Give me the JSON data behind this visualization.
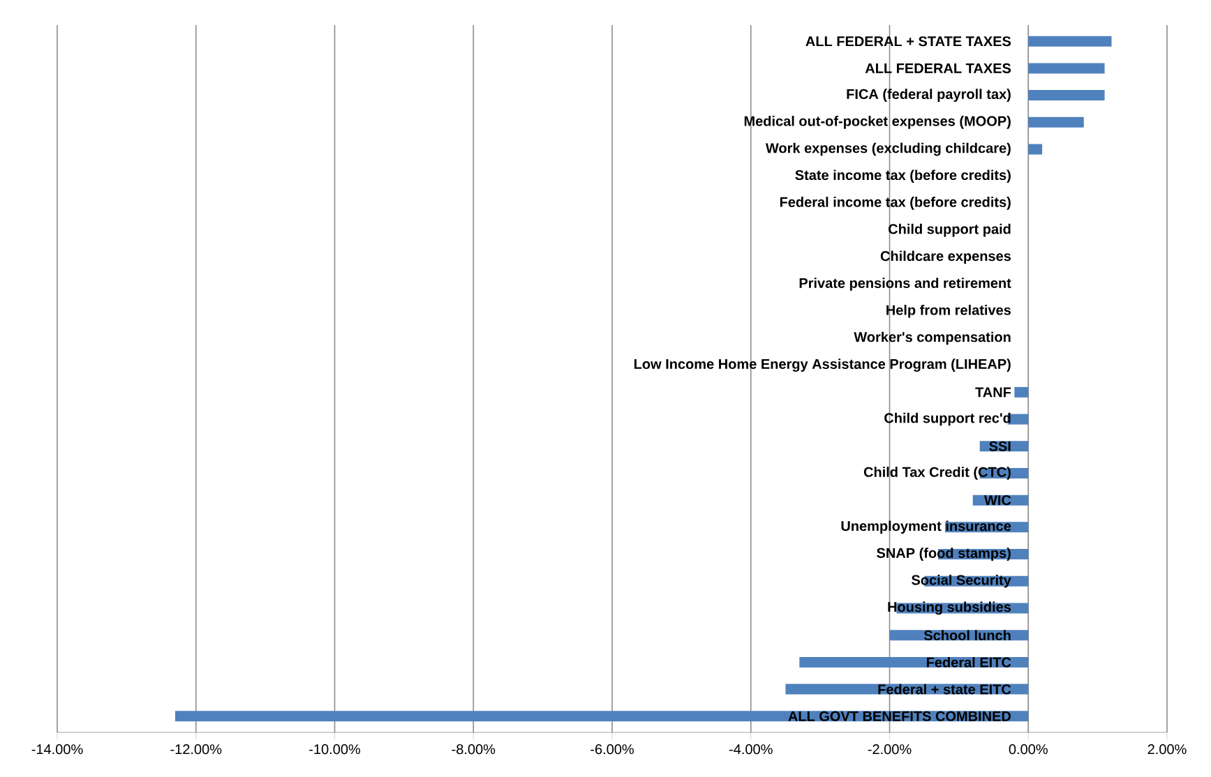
{
  "chart_data": {
    "type": "bar",
    "orientation": "horizontal",
    "color": "#4f81bd",
    "grid": "x",
    "categories": [
      "ALL FEDERAL + STATE TAXES",
      "ALL FEDERAL TAXES",
      "FICA (federal payroll tax)",
      "Medical out-of-pocket expenses (MOOP)",
      "Work expenses (excluding childcare)",
      "State income tax (before credits)",
      "Federal income tax (before credits)",
      "Child support paid",
      "Childcare expenses",
      "Private pensions and retirement",
      "Help from relatives",
      "Worker's compensation",
      "Low Income Home Energy Assistance Program (LIHEAP)",
      "TANF",
      "Child support rec'd",
      "SSI",
      "Child Tax Credit (CTC)",
      "WIC",
      "Unemployment insurance",
      "SNAP (food stamps)",
      "Social Security",
      "Housing subsidies",
      "School lunch",
      "Federal EITC",
      "Federal + state EITC",
      "ALL GOVT BENEFITS COMBINED"
    ],
    "values": [
      1.2,
      1.1,
      1.1,
      0.8,
      0.2,
      0,
      0,
      0,
      0,
      0,
      0,
      0,
      0,
      -0.2,
      -0.3,
      -0.7,
      -0.7,
      -0.8,
      -1.2,
      -1.3,
      -1.5,
      -1.9,
      -2.0,
      -3.3,
      -3.5,
      -12.3
    ],
    "xlim": [
      -14,
      2
    ],
    "xticks": [
      {
        "value": -14,
        "label": "-14.00%"
      },
      {
        "value": -12,
        "label": "-12.00%"
      },
      {
        "value": -10,
        "label": "-10.00%"
      },
      {
        "value": -8,
        "label": "-8.00%"
      },
      {
        "value": -6,
        "label": "-6.00%"
      },
      {
        "value": -4,
        "label": "-4.00%"
      },
      {
        "value": -2,
        "label": "-2.00%"
      },
      {
        "value": 0,
        "label": "0.00%"
      },
      {
        "value": 2,
        "label": "2.00%"
      }
    ]
  }
}
